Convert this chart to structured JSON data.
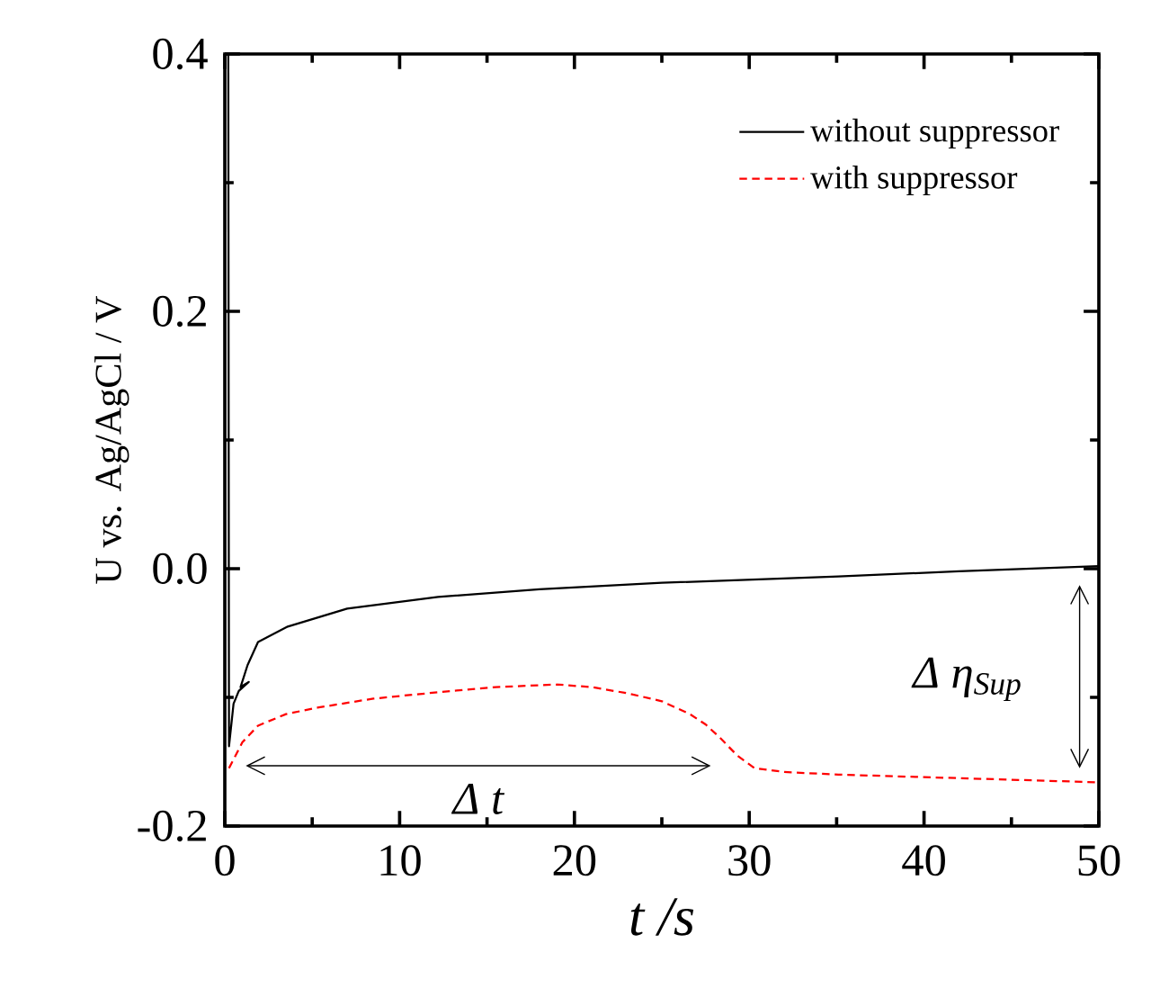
{
  "chart_data": {
    "type": "line",
    "xlabel": "t /s",
    "ylabel": "U vs. Ag/AgCl / V",
    "xlim": [
      0,
      50
    ],
    "ylim": [
      -0.2,
      0.4
    ],
    "xticks": [
      0,
      10,
      20,
      30,
      40,
      50
    ],
    "yticks": [
      -0.2,
      {
        "value": 0,
        "label": "0.0"
      },
      0.2,
      0.4
    ],
    "legend": "top right",
    "series": [
      {
        "name": "without suppressor",
        "color": "#000000",
        "line_style": "solid",
        "x": [
          0.2,
          0.24,
          0.5,
          0.8,
          1.37,
          0.9,
          1.3,
          1.9,
          3.6,
          7.0,
          12.2,
          18.0,
          25.0,
          35.1,
          42.0,
          50.0
        ],
        "values": [
          0.4,
          -0.138,
          -0.105,
          -0.095,
          -0.088,
          -0.092,
          -0.075,
          -0.057,
          -0.045,
          -0.031,
          -0.022,
          -0.016,
          -0.011,
          -0.006,
          -0.002,
          0.002
        ]
      },
      {
        "name": "with suppressor",
        "color": "#ff0000",
        "line_style": "dashed",
        "x": [
          0.24,
          1.0,
          1.9,
          3.5,
          5.3,
          8.5,
          12.2,
          15.5,
          19.0,
          21.0,
          23.1,
          25.0,
          26.6,
          27.5,
          28.3,
          29.3,
          30.3,
          32.0,
          35.1,
          40.0,
          45.0,
          50.0
        ],
        "values": [
          -0.155,
          -0.135,
          -0.122,
          -0.113,
          -0.108,
          -0.101,
          -0.096,
          -0.092,
          -0.09,
          -0.092,
          -0.097,
          -0.103,
          -0.113,
          -0.121,
          -0.131,
          -0.145,
          -0.155,
          -0.158,
          -0.16,
          -0.162,
          -0.164,
          -0.166
        ]
      }
    ],
    "annotations": [
      "Δ t",
      "Δ η$_{Sup}$"
    ]
  }
}
